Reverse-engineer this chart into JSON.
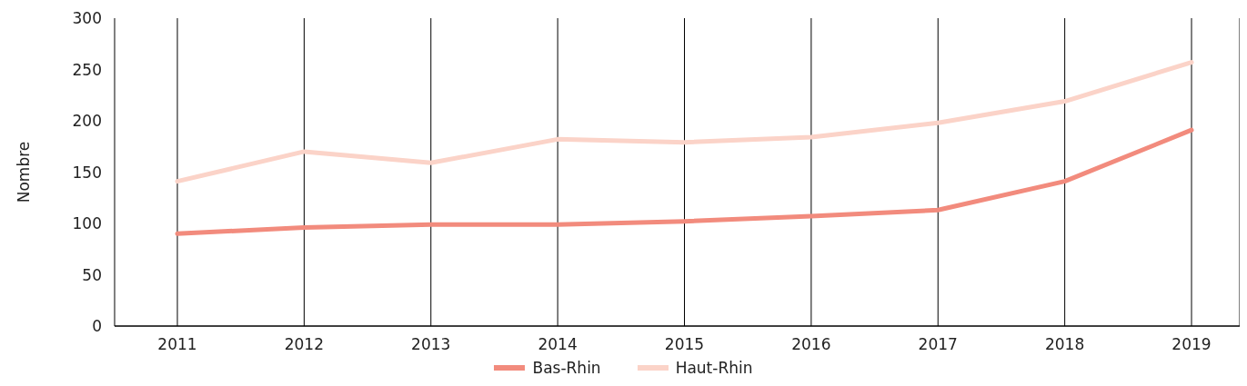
{
  "chart_data": {
    "type": "line",
    "ylabel": "Nombre",
    "categories": [
      "2011",
      "2012",
      "2013",
      "2014",
      "2015",
      "2016",
      "2017",
      "2018",
      "2019"
    ],
    "series": [
      {
        "name": "Bas-Rhin",
        "color": "#f28b7d",
        "values": [
          90,
          96,
          99,
          99,
          102,
          107,
          113,
          141,
          191
        ]
      },
      {
        "name": "Haut-Rhin",
        "color": "#fbd3c8",
        "values": [
          141,
          170,
          159,
          182,
          179,
          184,
          198,
          219,
          257
        ]
      }
    ],
    "ylim": [
      0,
      300
    ],
    "yticks": [
      0,
      50,
      100,
      150,
      200,
      250,
      300
    ],
    "grid": "x",
    "legend": "bottom",
    "marker": "none",
    "line_style": "solid"
  }
}
